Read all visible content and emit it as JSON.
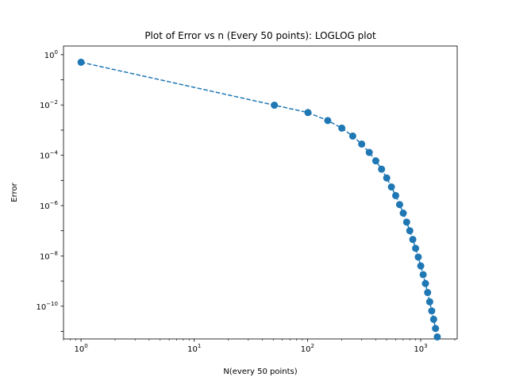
{
  "chart_data": {
    "type": "line",
    "title": "Plot of Error vs n (Every 50 points): LOGLOG plot",
    "xlabel": "N(every 50 points)",
    "ylabel": "Error",
    "xscale": "log",
    "yscale": "log",
    "xlim": [
      0.7,
      2100
    ],
    "ylim": [
      5e-12,
      2.2
    ],
    "grid": false,
    "line_style": "dashed",
    "marker": "circle",
    "color": "#1f77b4",
    "x_major_ticks": [
      {
        "value": 1,
        "base": "10",
        "exp": "0"
      },
      {
        "value": 10,
        "base": "10",
        "exp": "1"
      },
      {
        "value": 100,
        "base": "10",
        "exp": "2"
      },
      {
        "value": 1000,
        "base": "10",
        "exp": "3"
      }
    ],
    "y_major_ticks": [
      {
        "value": 1,
        "base": "10",
        "exp": "0"
      },
      {
        "value": 0.01,
        "base": "10",
        "exp": "−2"
      },
      {
        "value": 0.0001,
        "base": "10",
        "exp": "−4"
      },
      {
        "value": 1e-06,
        "base": "10",
        "exp": "−6"
      },
      {
        "value": 1e-08,
        "base": "10",
        "exp": "−8"
      },
      {
        "value": 1e-10,
        "base": "10",
        "exp": "−10"
      }
    ],
    "series": [
      {
        "x": [
          1,
          51,
          101,
          151,
          201,
          251,
          301,
          351,
          401,
          451,
          501,
          551,
          601,
          651,
          701,
          751,
          801,
          851,
          901,
          951,
          1001,
          1051,
          1101,
          1151,
          1201,
          1251,
          1301,
          1351,
          1401
        ],
        "y": [
          0.5,
          0.0098,
          0.005,
          0.0024,
          0.0012,
          0.00058,
          0.00028,
          0.00013,
          6e-05,
          2.8e-05,
          1.25e-05,
          5.5e-06,
          2.5e-06,
          1.1e-06,
          5e-07,
          2.2e-07,
          1e-07,
          4.5e-08,
          2e-08,
          9e-09,
          4e-09,
          1.8e-09,
          8e-10,
          3.5e-10,
          1.5e-10,
          6.5e-11,
          3e-11,
          1.3e-11,
          6e-12
        ]
      }
    ]
  }
}
